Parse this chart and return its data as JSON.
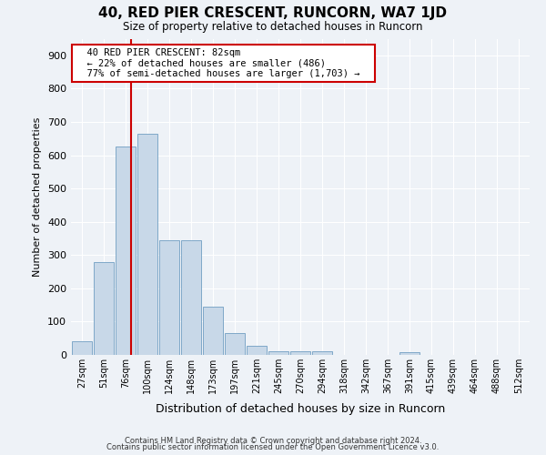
{
  "title": "40, RED PIER CRESCENT, RUNCORN, WA7 1JD",
  "subtitle": "Size of property relative to detached houses in Runcorn",
  "xlabel": "Distribution of detached houses by size in Runcorn",
  "ylabel": "Number of detached properties",
  "bin_labels": [
    "27sqm",
    "51sqm",
    "76sqm",
    "100sqm",
    "124sqm",
    "148sqm",
    "173sqm",
    "197sqm",
    "221sqm",
    "245sqm",
    "270sqm",
    "294sqm",
    "318sqm",
    "342sqm",
    "367sqm",
    "391sqm",
    "415sqm",
    "439sqm",
    "464sqm",
    "488sqm",
    "512sqm"
  ],
  "bar_heights": [
    42,
    280,
    625,
    665,
    345,
    345,
    145,
    65,
    28,
    12,
    10,
    10,
    0,
    0,
    0,
    8,
    0,
    0,
    0,
    0,
    0
  ],
  "bar_color": "#c8d8e8",
  "bar_edge_color": "#7fa8c8",
  "ylim": [
    0,
    950
  ],
  "yticks": [
    0,
    100,
    200,
    300,
    400,
    500,
    600,
    700,
    800,
    900
  ],
  "red_line_x": 2.23,
  "annotation_text": "  40 RED PIER CRESCENT: 82sqm  \n  ← 22% of detached houses are smaller (486)  \n  77% of semi-detached houses are larger (1,703) →  ",
  "annotation_box_color": "#ffffff",
  "annotation_box_edge": "#cc0000",
  "red_line_color": "#cc0000",
  "footer1": "Contains HM Land Registry data © Crown copyright and database right 2024.",
  "footer2": "Contains public sector information licensed under the Open Government Licence v3.0.",
  "background_color": "#eef2f7",
  "grid_color": "#ffffff"
}
